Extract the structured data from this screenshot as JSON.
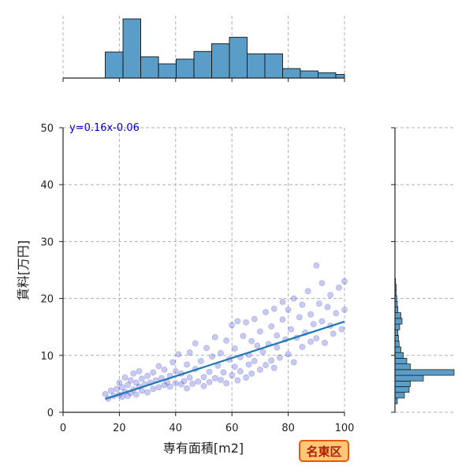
{
  "chart_data": {
    "type": "scatter",
    "subtype": "jointplot",
    "xlabel": "専有面積[m2]",
    "ylabel": "賃料[万円]",
    "xlim": [
      0,
      100
    ],
    "ylim": [
      0,
      50
    ],
    "xticks": [
      0,
      20,
      40,
      60,
      80,
      100
    ],
    "yticks": [
      0,
      10,
      20,
      30,
      40,
      50
    ],
    "grid": true,
    "annotation": "y=0.16x-0.06",
    "badge": "名東区",
    "regression": {
      "slope": 0.16,
      "intercept": -0.06,
      "x_range": [
        15,
        100
      ]
    },
    "colors": {
      "points": "#3a3fcf",
      "line": "#1f77b4",
      "hist_fill": "#5b9dc9",
      "badge_bg": "#ffc77a",
      "badge_border": "#e8590c",
      "annot": "#0000cc"
    },
    "x_hist": {
      "bin_edges": [
        15,
        21.3,
        27.6,
        33.9,
        40.2,
        46.5,
        52.8,
        59.1,
        65.4,
        71.7,
        78,
        84.3,
        90.6,
        96.9,
        103
      ],
      "counts": [
        44,
        100,
        36,
        24,
        32,
        45,
        58,
        69,
        41,
        41,
        16,
        12,
        9,
        6
      ]
    },
    "y_hist": {
      "bin_edges": [
        1.5,
        2.5,
        3.5,
        4.5,
        5.5,
        6.5,
        7.5,
        8.5,
        9.5,
        10.5,
        11.5,
        12.5,
        13.5,
        14.5,
        15.5,
        16.5,
        17.5,
        18.5,
        19.5,
        20.5,
        21.5,
        22.5,
        23.5
      ],
      "counts": [
        4,
        16,
        24,
        26,
        48,
        100,
        26,
        20,
        14,
        10,
        7,
        6,
        5,
        8,
        12,
        10,
        5,
        4,
        3,
        2,
        2,
        1
      ]
    },
    "points": [
      [
        15,
        3.2
      ],
      [
        16,
        2.4
      ],
      [
        17,
        3.8
      ],
      [
        18,
        2.9
      ],
      [
        19,
        4.1
      ],
      [
        20,
        3.1
      ],
      [
        20,
        5.2
      ],
      [
        21,
        2.7
      ],
      [
        21,
        4.4
      ],
      [
        22,
        3.6
      ],
      [
        22,
        6.1
      ],
      [
        23,
        2.9
      ],
      [
        23,
        4.8
      ],
      [
        24,
        3.4
      ],
      [
        24,
        5.6
      ],
      [
        25,
        4.0
      ],
      [
        25,
        6.8
      ],
      [
        26,
        3.1
      ],
      [
        26,
        5.2
      ],
      [
        27,
        4.5
      ],
      [
        27,
        7.2
      ],
      [
        28,
        3.8
      ],
      [
        28,
        5.9
      ],
      [
        29,
        4.9
      ],
      [
        30,
        3.5
      ],
      [
        30,
        6.4
      ],
      [
        31,
        5.2
      ],
      [
        32,
        4.1
      ],
      [
        32,
        7.0
      ],
      [
        33,
        5.6
      ],
      [
        34,
        4.4
      ],
      [
        34,
        8.1
      ],
      [
        35,
        6.0
      ],
      [
        36,
        4.8
      ],
      [
        36,
        7.5
      ],
      [
        37,
        5.3
      ],
      [
        38,
        6.4
      ],
      [
        38,
        4.5
      ],
      [
        39,
        8.8
      ],
      [
        40,
        5.1
      ],
      [
        40,
        7.2
      ],
      [
        41,
        10.2
      ],
      [
        42,
        4.9
      ],
      [
        42,
        6.8
      ],
      [
        43,
        5.5
      ],
      [
        44,
        8.4
      ],
      [
        44,
        4.2
      ],
      [
        45,
        6.1
      ],
      [
        45,
        10.5
      ],
      [
        46,
        5.0
      ],
      [
        47,
        7.6
      ],
      [
        47,
        12.1
      ],
      [
        48,
        5.4
      ],
      [
        49,
        9.0
      ],
      [
        50,
        6.2
      ],
      [
        50,
        4.6
      ],
      [
        51,
        11.3
      ],
      [
        52,
        7.1
      ],
      [
        52,
        5.3
      ],
      [
        53,
        9.8
      ],
      [
        54,
        6.0
      ],
      [
        54,
        13.2
      ],
      [
        55,
        8.2
      ],
      [
        56,
        5.7
      ],
      [
        56,
        10.4
      ],
      [
        57,
        7.0
      ],
      [
        58,
        12.6
      ],
      [
        58,
        5.1
      ],
      [
        59,
        9.3
      ],
      [
        60,
        6.5
      ],
      [
        60,
        15.3
      ],
      [
        61,
        8.0
      ],
      [
        61,
        11.2
      ],
      [
        62,
        5.6
      ],
      [
        62,
        16.0
      ],
      [
        63,
        9.7
      ],
      [
        63,
        7.2
      ],
      [
        64,
        13.4
      ],
      [
        65,
        6.1
      ],
      [
        65,
        15.8
      ],
      [
        66,
        10.1
      ],
      [
        66,
        8.4
      ],
      [
        67,
        12.5
      ],
      [
        67,
        6.8
      ],
      [
        68,
        16.4
      ],
      [
        68,
        9.0
      ],
      [
        69,
        11.7
      ],
      [
        70,
        7.5
      ],
      [
        70,
        14.2
      ],
      [
        71,
        10.6
      ],
      [
        72,
        8.3
      ],
      [
        72,
        17.6
      ],
      [
        73,
        12.0
      ],
      [
        74,
        9.1
      ],
      [
        74,
        15.1
      ],
      [
        75,
        7.8
      ],
      [
        75,
        18.2
      ],
      [
        76,
        11.4
      ],
      [
        76,
        13.5
      ],
      [
        77,
        9.6
      ],
      [
        78,
        16.3
      ],
      [
        78,
        19.4
      ],
      [
        79,
        12.8
      ],
      [
        80,
        10.2
      ],
      [
        80,
        18.0
      ],
      [
        81,
        14.6
      ],
      [
        82,
        8.8
      ],
      [
        82,
        20.0
      ],
      [
        83,
        13.1
      ],
      [
        84,
        16.7
      ],
      [
        85,
        11.5
      ],
      [
        85,
        18.9
      ],
      [
        86,
        14.0
      ],
      [
        87,
        21.3
      ],
      [
        88,
        12.4
      ],
      [
        88,
        17.2
      ],
      [
        89,
        15.5
      ],
      [
        90,
        25.8
      ],
      [
        90,
        13.0
      ],
      [
        91,
        19.1
      ],
      [
        92,
        16.0
      ],
      [
        92,
        22.7
      ],
      [
        93,
        12.2
      ],
      [
        94,
        18.5
      ],
      [
        95,
        15.2
      ],
      [
        95,
        20.6
      ],
      [
        96,
        13.8
      ],
      [
        97,
        17.4
      ],
      [
        98,
        21.9
      ],
      [
        99,
        14.6
      ],
      [
        100,
        18.0
      ],
      [
        100,
        23.0
      ]
    ]
  }
}
